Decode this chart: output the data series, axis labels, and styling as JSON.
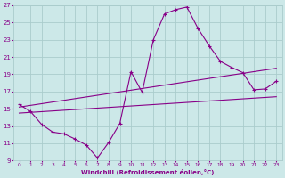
{
  "xlabel": "Windchill (Refroidissement éolien,°C)",
  "background_color": "#cce8e8",
  "grid_color": "#aacccc",
  "line_color": "#880088",
  "xlim": [
    -0.5,
    23.5
  ],
  "ylim": [
    9,
    27
  ],
  "xticks": [
    0,
    1,
    2,
    3,
    4,
    5,
    6,
    7,
    8,
    9,
    10,
    11,
    12,
    13,
    14,
    15,
    16,
    17,
    18,
    19,
    20,
    21,
    22,
    23
  ],
  "yticks": [
    9,
    11,
    13,
    15,
    17,
    19,
    21,
    23,
    25,
    27
  ],
  "line1_x": [
    0,
    1,
    2,
    3,
    4,
    5,
    6,
    7,
    8,
    9,
    10,
    11,
    12,
    13,
    14,
    15,
    16,
    17,
    18,
    19,
    20,
    21,
    22,
    23
  ],
  "line1_y": [
    15.5,
    14.7,
    13.2,
    12.3,
    12.1,
    11.5,
    10.8,
    9.3,
    11.1,
    13.3,
    19.3,
    16.9,
    23.0,
    26.0,
    26.5,
    26.8,
    24.3,
    22.3,
    20.5,
    19.8,
    19.2,
    17.2,
    17.3,
    18.2
  ],
  "line2_x": [
    0,
    23
  ],
  "line2_y": [
    15.2,
    19.7
  ],
  "line3_x": [
    0,
    23
  ],
  "line3_y": [
    14.5,
    16.4
  ]
}
